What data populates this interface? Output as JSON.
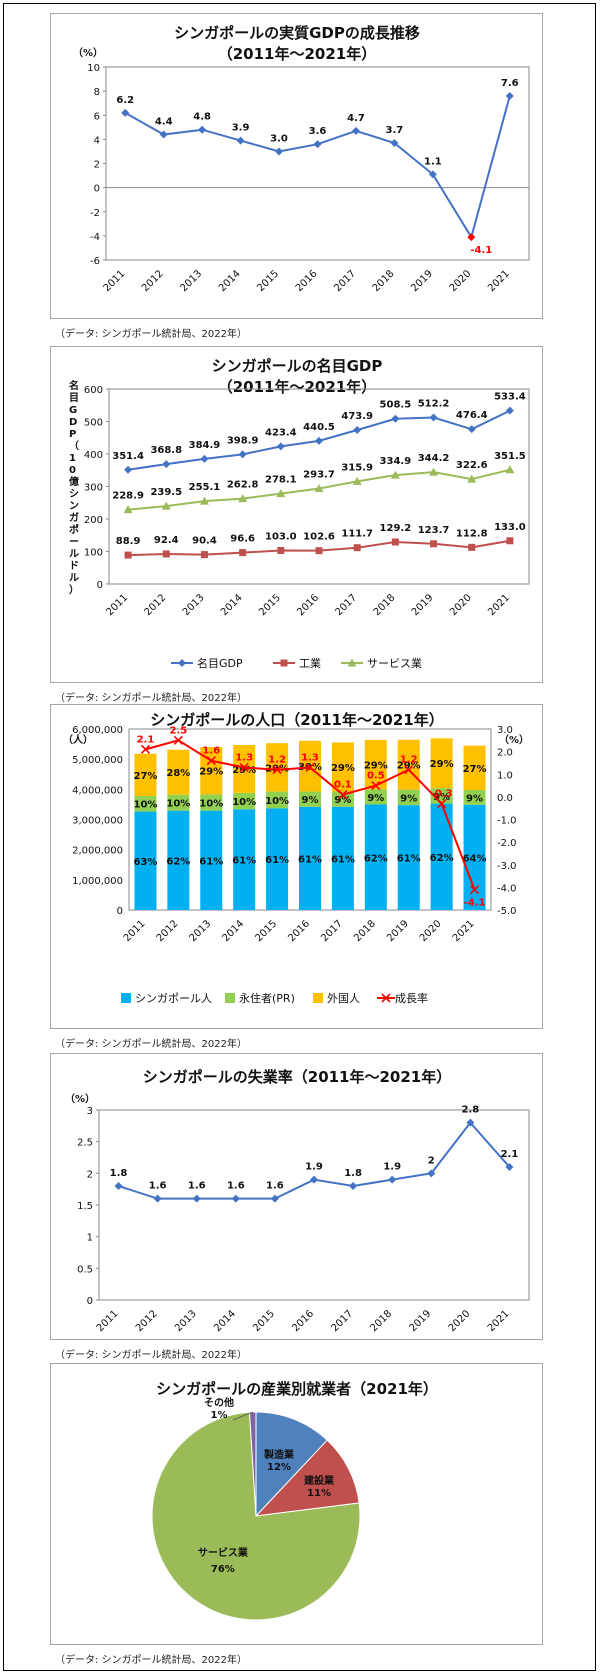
{
  "colors": {
    "gdp": "#4472c4",
    "industry": "#c0504d",
    "services": "#9bbb59",
    "pie_services": "#9bbb59",
    "pie_mfg": "#4f81bd",
    "pie_const": "#c0504d",
    "pie_other": "#8064a2",
    "citizen": "#00b0f0",
    "pr": "#92d050",
    "foreign": "#ffc000",
    "growth": "#ff0000",
    "neg_label": "#ff0000"
  },
  "chart_data": [
    {
      "type": "line",
      "title": "シンガポールの実質GDPの成長推移",
      "subtitle": "（2011年～2021年）",
      "ylabel": "（%）",
      "x": [
        "2011",
        "2012",
        "2013",
        "2014",
        "2015",
        "2016",
        "2017",
        "2018",
        "2019",
        "2020",
        "2021"
      ],
      "series": [
        {
          "values": [
            6.2,
            4.4,
            4.8,
            3.9,
            3.0,
            3.6,
            4.7,
            3.7,
            1.1,
            -4.1,
            7.6
          ]
        }
      ],
      "labels": [
        "6.2",
        "4.4",
        "4.8",
        "3.9",
        "3.0",
        "3.6",
        "4.7",
        "3.7",
        "1.1",
        "-4.1",
        "7.6"
      ],
      "ylim": [
        -6,
        10
      ],
      "yticks": [
        "10",
        "8",
        "6",
        "4",
        "2",
        "0",
        "-2",
        "-4",
        "-6"
      ],
      "source": "（データ: シンガポール統計局、2022年）"
    },
    {
      "type": "line",
      "title": "シンガポールの名目GDP",
      "subtitle": "（2011年～2021年）",
      "ylabel": "名目GDP（10億シンガポールドル）",
      "x": [
        "2011",
        "2012",
        "2013",
        "2014",
        "2015",
        "2016",
        "2017",
        "2018",
        "2019",
        "2020",
        "2021"
      ],
      "series": [
        {
          "name": "名目GDP",
          "values": [
            351.4,
            368.8,
            384.9,
            398.9,
            423.4,
            440.5,
            473.9,
            508.5,
            512.2,
            476.4,
            533.4
          ],
          "labels": [
            "351.4",
            "368.8",
            "384.9",
            "398.9",
            "423.4",
            "440.5",
            "473.9",
            "508.5",
            "512.2",
            "476.4",
            "533.4"
          ]
        },
        {
          "name": "工業",
          "values": [
            88.9,
            92.4,
            90.4,
            96.6,
            103.0,
            102.6,
            111.7,
            129.2,
            123.7,
            112.8,
            133.0
          ],
          "labels": [
            "88.9",
            "92.4",
            "90.4",
            "96.6",
            "103.0",
            "102.6",
            "111.7",
            "129.2",
            "123.7",
            "112.8",
            "133.0"
          ]
        },
        {
          "name": "サービス業",
          "values": [
            228.9,
            239.5,
            255.1,
            262.8,
            278.1,
            293.7,
            315.9,
            334.9,
            344.2,
            322.6,
            351.5
          ],
          "labels": [
            "228.9",
            "239.5",
            "255.1",
            "262.8",
            "278.1",
            "293.7",
            "315.9",
            "334.9",
            "344.2",
            "322.6",
            "351.5"
          ]
        }
      ],
      "ylim": [
        0,
        600
      ],
      "yticks": [
        "600",
        "500",
        "400",
        "300",
        "200",
        "100",
        "0"
      ],
      "legend": "bottom",
      "source": "（データ: シンガポール統計局、2022年）"
    },
    {
      "type": "bar",
      "stacked": true,
      "title": "シンガポールの人口（2011年～2021年）",
      "ylabel": "（人）",
      "y2label": "（%）",
      "categories": [
        "2011",
        "2012",
        "2013",
        "2014",
        "2015",
        "2016",
        "2017",
        "2018",
        "2019",
        "2020",
        "2021"
      ],
      "totals": [
        5180000,
        5310000,
        5400000,
        5470000,
        5530000,
        5610000,
        5610000,
        5640000,
        5700000,
        5690000,
        5450000
      ],
      "series": [
        {
          "name": "シンガポール人",
          "shares": [
            63,
            62,
            61,
            61,
            61,
            61,
            61,
            62,
            61,
            62,
            64
          ],
          "labels": [
            "63%",
            "62%",
            "61%",
            "61%",
            "61%",
            "61%",
            "61%",
            "62%",
            "61%",
            "62%",
            "64%"
          ]
        },
        {
          "name": "永住者(PR)",
          "shares": [
            10,
            10,
            10,
            10,
            10,
            9,
            9,
            9,
            9,
            9,
            9
          ],
          "labels": [
            "10%",
            "10%",
            "10%",
            "10%",
            "10%",
            "9%",
            "9%",
            "9%",
            "9%",
            "9%",
            "9%"
          ]
        },
        {
          "name": "外国人",
          "shares": [
            27,
            28,
            29,
            29,
            29,
            30,
            29,
            29,
            29,
            29,
            27
          ],
          "labels": [
            "27%",
            "28%",
            "29%",
            "29%",
            "29%",
            "30%",
            "29%",
            "29%",
            "29%",
            "29%",
            "27%"
          ]
        }
      ],
      "growth": {
        "name": "成長率",
        "values": [
          2.1,
          2.5,
          1.6,
          1.3,
          1.2,
          1.3,
          0.1,
          0.5,
          1.2,
          -0.3,
          -4.1
        ],
        "labels": [
          "2.1",
          "2.5",
          "1.6",
          "1.3",
          "1.2",
          "1.3",
          "0.1",
          "0.5",
          "1.2",
          "-0.3",
          "-4.1"
        ]
      },
      "ylim": [
        0,
        6000000
      ],
      "yticks": [
        "6,000,000",
        "5,000,000",
        "4,000,000",
        "3,000,000",
        "2,000,000",
        "1,000,000",
        "0"
      ],
      "y2lim": [
        -5,
        3
      ],
      "y2ticks": [
        "3.0",
        "2.0",
        "1.0",
        "0.0",
        "-1.0",
        "-2.0",
        "-3.0",
        "-4.0",
        "-5.0"
      ],
      "legend": "bottom",
      "source": "（データ: シンガポール統計局、2022年）"
    },
    {
      "type": "line",
      "title": "シンガポールの失業率（2011年～2021年）",
      "ylabel": "（%）",
      "x": [
        "2011",
        "2012",
        "2013",
        "2014",
        "2015",
        "2016",
        "2017",
        "2018",
        "2019",
        "2020",
        "2021"
      ],
      "series": [
        {
          "values": [
            1.8,
            1.6,
            1.6,
            1.6,
            1.6,
            1.9,
            1.8,
            1.9,
            2.0,
            2.8,
            2.1
          ]
        }
      ],
      "labels": [
        "1.8",
        "1.6",
        "1.6",
        "1.6",
        "1.6",
        "1.9",
        "1.8",
        "1.9",
        "2",
        "2.8",
        "2.1"
      ],
      "ylim": [
        0,
        3
      ],
      "yticks": [
        "3",
        "2.5",
        "2",
        "1.5",
        "1",
        "0.5",
        "0"
      ],
      "source": "（データ: シンガポール統計局、2022年）"
    },
    {
      "type": "pie",
      "title": "シンガポールの産業別就業者（2021年）",
      "slices": [
        {
          "name": "製造業",
          "value": 12,
          "label": "12%"
        },
        {
          "name": "建設業",
          "value": 11,
          "label": "11%"
        },
        {
          "name": "サービス業",
          "value": 76,
          "label": "76%"
        },
        {
          "name": "その他",
          "value": 1,
          "label": "1%"
        }
      ],
      "source": "（データ: シンガポール統計局、2022年）"
    }
  ]
}
